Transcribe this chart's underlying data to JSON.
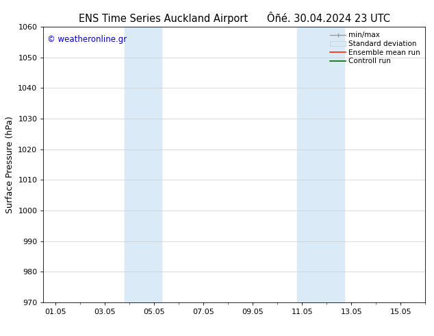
{
  "title_left": "ENS Time Series Auckland Airport",
  "title_right": "Ôñé. 30.04.2024 23 UTC",
  "ylabel": "Surface Pressure (hPa)",
  "ylim": [
    970,
    1060
  ],
  "yticks": [
    970,
    980,
    990,
    1000,
    1010,
    1020,
    1030,
    1040,
    1050,
    1060
  ],
  "xtick_labels": [
    "01.05",
    "03.05",
    "05.05",
    "07.05",
    "09.05",
    "11.05",
    "13.05",
    "15.05"
  ],
  "xtick_positions": [
    1,
    3,
    5,
    7,
    9,
    11,
    13,
    15
  ],
  "xlim": [
    0.5,
    16.0
  ],
  "watermark": "© weatheronline.gr",
  "watermark_color": "#0000cc",
  "bg_color": "#ffffff",
  "plot_bg_color": "#ffffff",
  "shaded_regions": [
    {
      "x_start": 3.8,
      "x_end": 5.3,
      "color": "#daeaf7"
    },
    {
      "x_start": 10.8,
      "x_end": 12.7,
      "color": "#daeaf7"
    }
  ],
  "grid_color": "#cccccc",
  "tick_label_fontsize": 8,
  "title_fontsize": 10.5,
  "ylabel_fontsize": 9,
  "legend_fontsize": 7.5
}
